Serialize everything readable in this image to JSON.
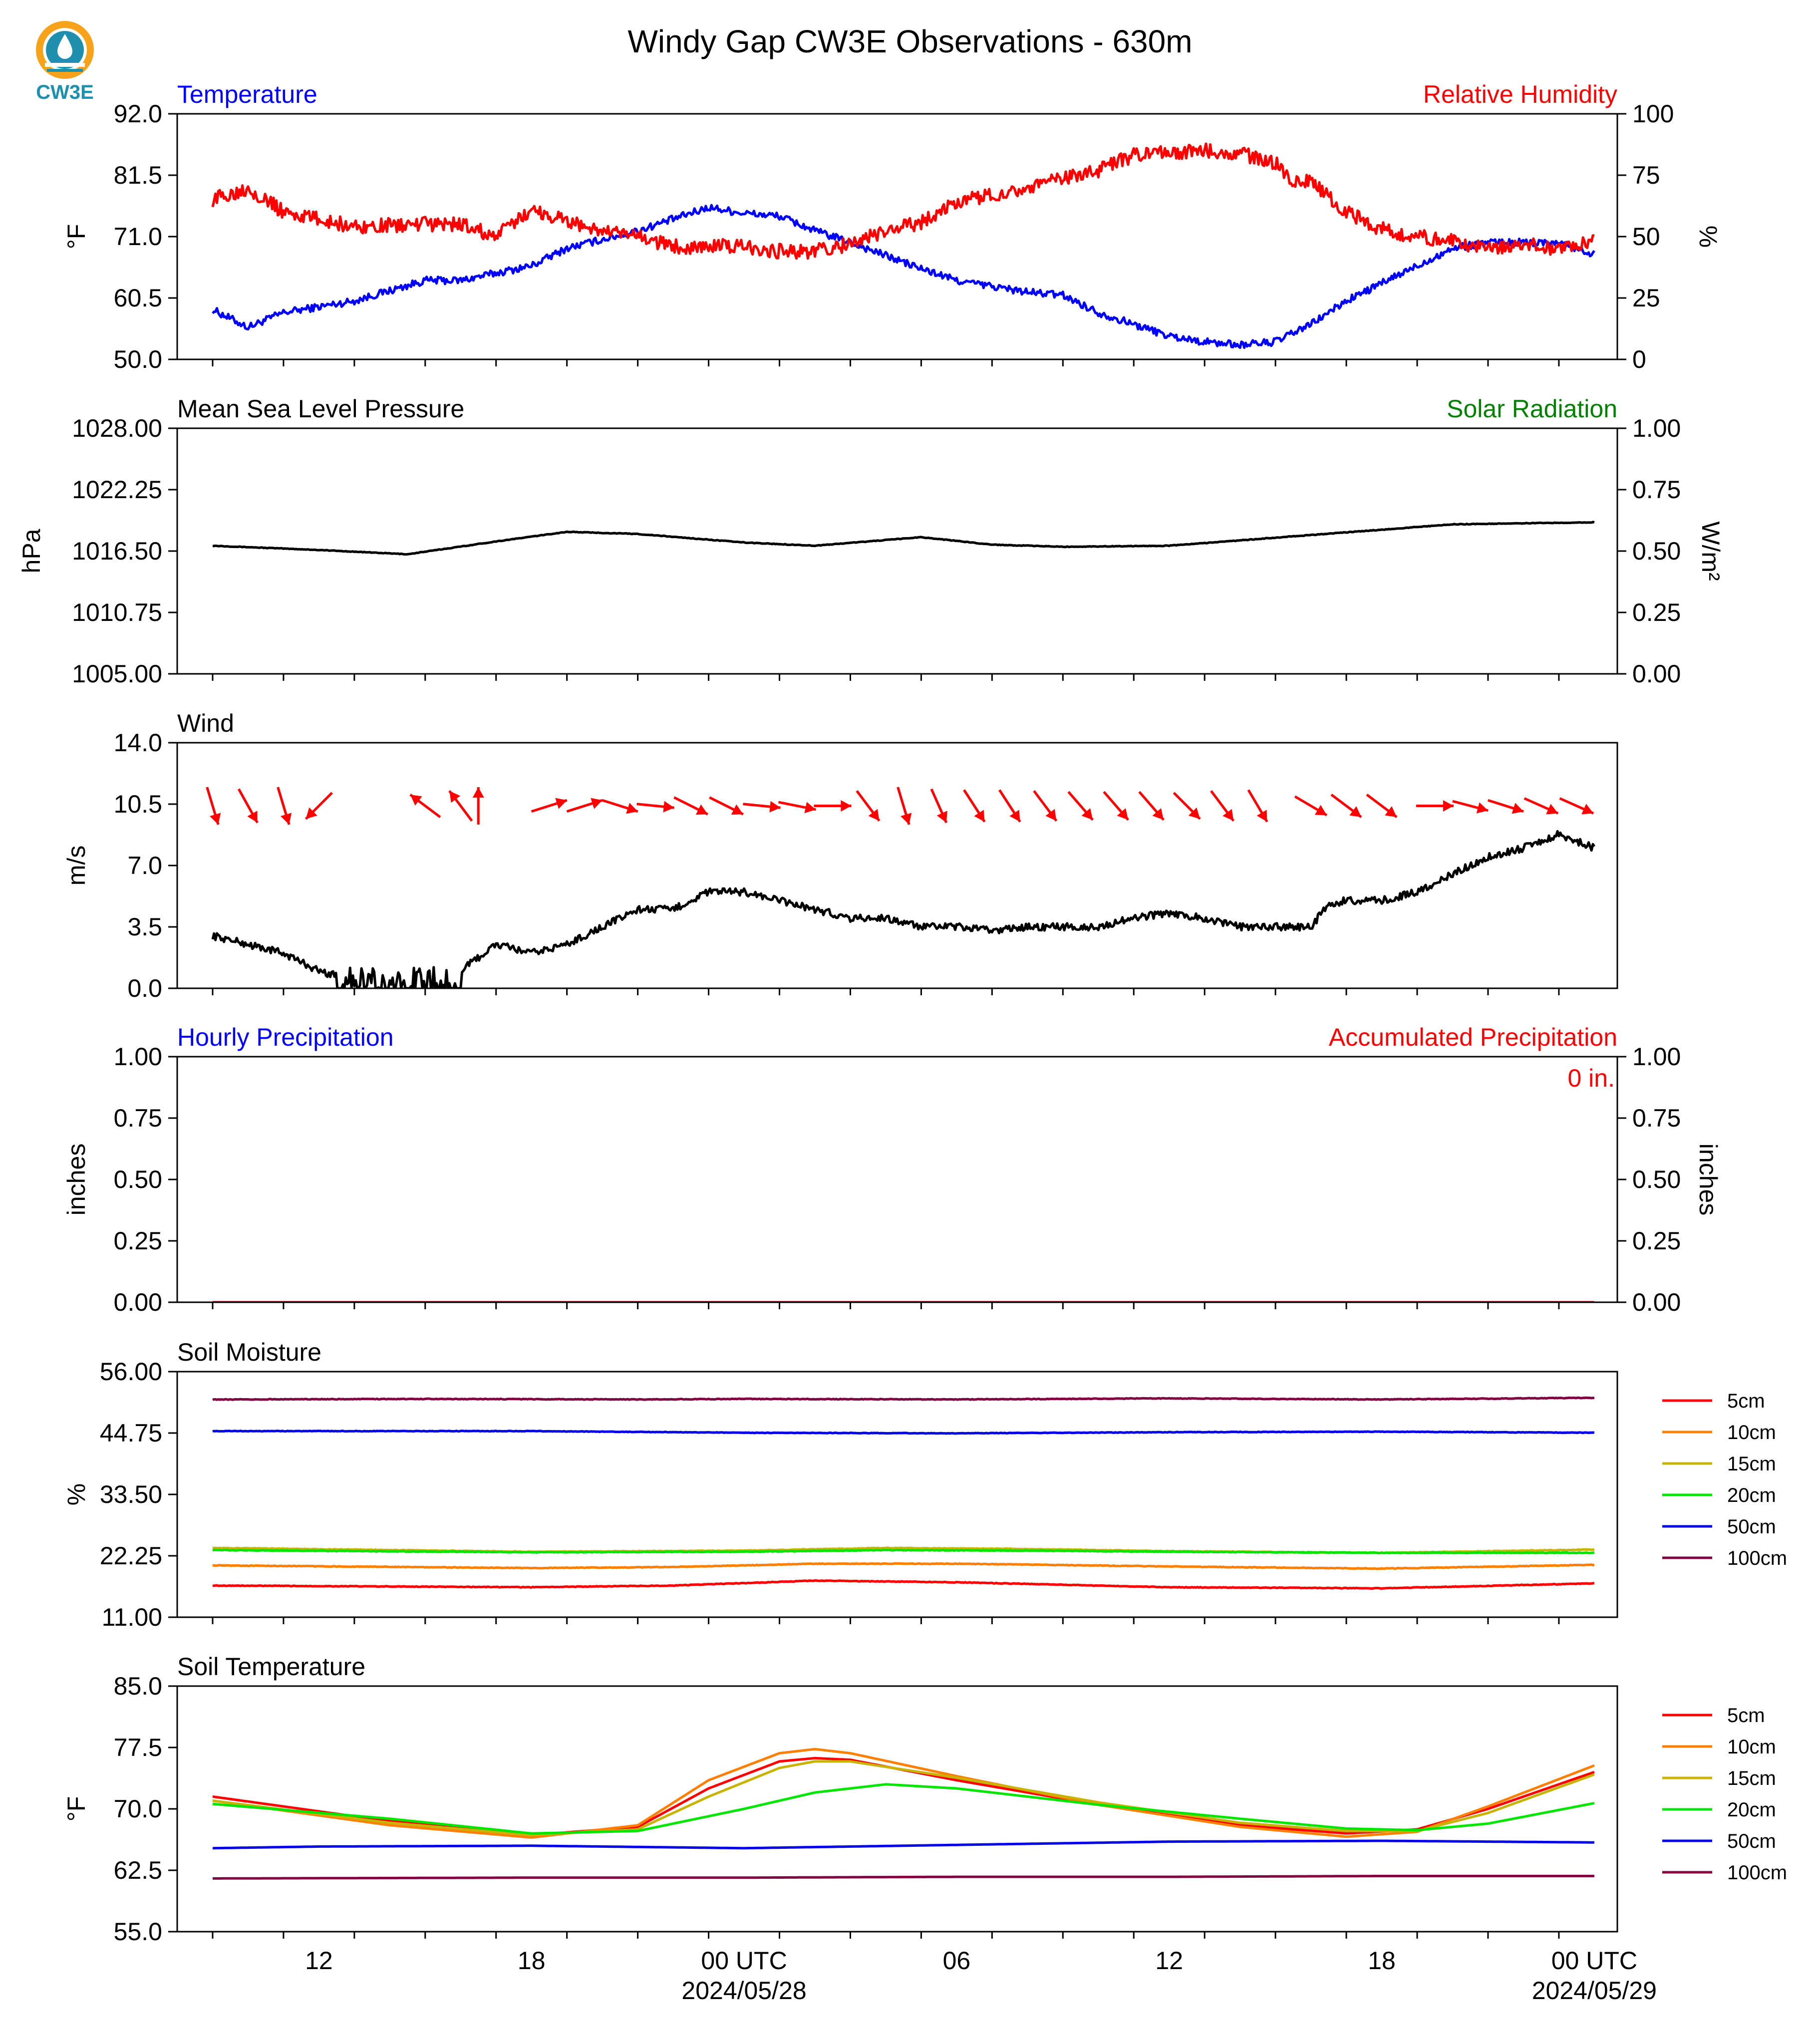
{
  "title": "Windy Gap CW3E Observations - 630m",
  "logo": {
    "text": "CW3E",
    "colors": {
      "orange": "#f7a21b",
      "teal": "#1f8fae"
    }
  },
  "x_axis": {
    "start_hour": -15,
    "end_hour": 24,
    "labels": [
      {
        "hour": -12,
        "text": "12"
      },
      {
        "hour": -6,
        "text": "18"
      },
      {
        "hour": 0,
        "text": "00 UTC",
        "sub": "2024/05/28"
      },
      {
        "hour": 6,
        "text": "06"
      },
      {
        "hour": 12,
        "text": "12"
      },
      {
        "hour": 18,
        "text": "18"
      },
      {
        "hour": 24,
        "text": "00 UTC",
        "sub": "2024/05/29"
      }
    ]
  },
  "chart_data": [
    {
      "id": "temperature",
      "type": "line",
      "left_title": "Temperature",
      "left_title_color": "#0000ff",
      "right_title": "Relative Humidity",
      "right_title_color": "#ff0000",
      "ylabel": "°F",
      "ylim": [
        50,
        92
      ],
      "yticks": [
        "50.0",
        "60.5",
        "71.0",
        "81.5",
        "92.0"
      ],
      "y2label": "%",
      "y2lim": [
        0,
        100
      ],
      "y2ticks": [
        "0",
        "25",
        "50",
        "75",
        "100"
      ],
      "series": [
        {
          "color": "#0000ff",
          "axis": "left",
          "noise": 0.6,
          "x": [
            -15,
            -14,
            -13,
            -11,
            -9,
            -8,
            -6,
            -5,
            -3,
            -1,
            0,
            1,
            2,
            3,
            5,
            6,
            8,
            9,
            10,
            11,
            12,
            13,
            14,
            15,
            16,
            17,
            18,
            19,
            20,
            21,
            22,
            23,
            24
          ],
          "y": [
            58.5,
            55.5,
            58,
            60,
            63.5,
            63.5,
            66,
            69,
            72,
            76,
            75,
            74.5,
            72,
            70,
            65.5,
            63.5,
            61.5,
            61,
            58,
            56,
            54,
            53,
            52.5,
            53,
            56,
            60,
            63,
            66,
            69,
            70,
            70,
            70,
            68
          ]
        },
        {
          "color": "#ff0000",
          "axis": "right",
          "noise": 1.2,
          "x": [
            -15,
            -14,
            -13,
            -11,
            -9,
            -8,
            -7,
            -6,
            -4,
            -3,
            -2,
            -1,
            0,
            1,
            2,
            3,
            4,
            5,
            6,
            8,
            10,
            11,
            12,
            13,
            14,
            15,
            15.5,
            16,
            17,
            18,
            19,
            20,
            21,
            22,
            23,
            24
          ],
          "y": [
            65,
            70,
            60,
            54,
            55,
            55,
            50,
            61,
            52,
            50,
            46,
            46,
            46,
            44,
            44,
            47,
            52,
            56,
            64,
            70,
            77,
            83,
            84,
            85,
            84,
            80,
            72,
            73,
            60,
            53,
            50,
            48,
            45,
            47,
            45,
            48
          ]
        }
      ]
    },
    {
      "id": "pressure",
      "type": "line",
      "left_title": "Mean Sea Level Pressure",
      "left_title_color": "#000000",
      "right_title": "Solar Radiation",
      "right_title_color": "#008000",
      "ylabel": "hPa",
      "ylim": [
        1005,
        1028
      ],
      "yticks": [
        "1005.00",
        "1010.75",
        "1016.50",
        "1022.25",
        "1028.00"
      ],
      "y2label": "W/m²",
      "y2lim": [
        0,
        1
      ],
      "y2ticks": [
        "0.00",
        "0.25",
        "0.50",
        "0.75",
        "1.00"
      ],
      "series": [
        {
          "color": "#000000",
          "axis": "left",
          "noise": 0.05,
          "x": [
            -15,
            -12,
            -9.5,
            -7,
            -5,
            -3,
            0,
            2,
            5,
            7,
            9,
            12,
            16,
            20,
            24
          ],
          "y": [
            1017.0,
            1016.6,
            1016.2,
            1017.4,
            1018.3,
            1018.1,
            1017.3,
            1017.0,
            1017.8,
            1017.1,
            1016.9,
            1017.0,
            1018.0,
            1019.0,
            1019.2
          ]
        }
      ]
    },
    {
      "id": "wind",
      "type": "line",
      "left_title": "Wind",
      "left_title_color": "#000000",
      "ylabel": "m/s",
      "ylim": [
        0,
        14
      ],
      "yticks": [
        "0.0",
        "3.5",
        "7.0",
        "10.5",
        "14.0"
      ],
      "series": [
        {
          "color": "#000000",
          "axis": "left",
          "noise": 0.6,
          "x": [
            -15,
            -13,
            -12,
            -11,
            -10,
            -9,
            -8.1,
            -8,
            -7,
            -6,
            -5,
            -4,
            -3,
            -2,
            -1,
            0,
            1,
            2,
            3,
            4,
            5,
            6,
            7,
            8,
            9,
            10,
            11,
            12,
            13,
            14,
            15,
            16,
            16.5,
            17,
            18,
            19,
            20,
            21,
            22,
            23,
            24
          ],
          "y": [
            3.0,
            2.0,
            1.0,
            0.4,
            0.5,
            0.5,
            0.5,
            1.0,
            2.5,
            2.0,
            2.5,
            3.5,
            4.5,
            4.5,
            5.5,
            5.5,
            5.0,
            4.5,
            4.0,
            4.0,
            3.5,
            3.5,
            3.3,
            3.5,
            3.5,
            3.5,
            4.0,
            4.3,
            4.0,
            3.5,
            3.5,
            3.5,
            4.8,
            5.0,
            5.0,
            5.5,
            6.5,
            7.5,
            8.0,
            8.8,
            8.0
          ],
          "gaps": [
            [
              -8.1,
              -8.0
            ]
          ]
        }
      ],
      "arrows": {
        "color": "#ff0000",
        "y_level": 10.4,
        "items": [
          {
            "hour": -15.0,
            "u": 0.3,
            "v": -1
          },
          {
            "hour": -14.0,
            "u": 0.5,
            "v": -0.9
          },
          {
            "hour": -13.0,
            "u": 0.3,
            "v": -1
          },
          {
            "hour": -12.0,
            "u": -0.7,
            "v": -0.7
          },
          {
            "hour": -9.0,
            "u": -0.8,
            "v": 0.6
          },
          {
            "hour": -8.0,
            "u": -0.6,
            "v": 0.8
          },
          {
            "hour": -7.5,
            "u": 0.0,
            "v": 1
          },
          {
            "hour": -5.5,
            "u": 0.95,
            "v": 0.3
          },
          {
            "hour": -4.5,
            "u": 0.95,
            "v": 0.3
          },
          {
            "hour": -3.5,
            "u": 0.95,
            "v": -0.3
          },
          {
            "hour": -2.5,
            "u": 1,
            "v": -0.1
          },
          {
            "hour": -1.5,
            "u": 0.9,
            "v": -0.45
          },
          {
            "hour": -0.5,
            "u": 0.9,
            "v": -0.45
          },
          {
            "hour": 0.5,
            "u": 1,
            "v": -0.1
          },
          {
            "hour": 1.5,
            "u": 1,
            "v": -0.2
          },
          {
            "hour": 2.5,
            "u": 1,
            "v": 0.0
          },
          {
            "hour": 3.5,
            "u": 0.6,
            "v": -0.8
          },
          {
            "hour": 4.5,
            "u": 0.3,
            "v": -1
          },
          {
            "hour": 5.5,
            "u": 0.4,
            "v": -0.9
          },
          {
            "hour": 6.5,
            "u": 0.55,
            "v": -0.85
          },
          {
            "hour": 7.5,
            "u": 0.55,
            "v": -0.85
          },
          {
            "hour": 8.5,
            "u": 0.6,
            "v": -0.8
          },
          {
            "hour": 9.5,
            "u": 0.65,
            "v": -0.75
          },
          {
            "hour": 10.5,
            "u": 0.65,
            "v": -0.75
          },
          {
            "hour": 11.5,
            "u": 0.65,
            "v": -0.75
          },
          {
            "hour": 12.5,
            "u": 0.7,
            "v": -0.7
          },
          {
            "hour": 13.5,
            "u": 0.6,
            "v": -0.8
          },
          {
            "hour": 14.5,
            "u": 0.5,
            "v": -0.85
          },
          {
            "hour": 16.0,
            "u": 0.85,
            "v": -0.5
          },
          {
            "hour": 17.0,
            "u": 0.8,
            "v": -0.6
          },
          {
            "hour": 18.0,
            "u": 0.8,
            "v": -0.6
          },
          {
            "hour": 19.5,
            "u": 1,
            "v": 0.0
          },
          {
            "hour": 20.5,
            "u": 0.95,
            "v": -0.25
          },
          {
            "hour": 21.5,
            "u": 0.95,
            "v": -0.3
          },
          {
            "hour": 22.5,
            "u": 0.9,
            "v": -0.4
          },
          {
            "hour": 23.5,
            "u": 0.9,
            "v": -0.4
          }
        ]
      }
    },
    {
      "id": "precipitation",
      "type": "line",
      "left_title": "Hourly Precipitation",
      "left_title_color": "#0000ff",
      "right_title": "Accumulated Precipitation",
      "right_title_color": "#ff0000",
      "annotation": "0 in.",
      "annotation_color": "#ff0000",
      "ylabel": "inches",
      "ylim": [
        0,
        1
      ],
      "yticks": [
        "0.00",
        "0.25",
        "0.50",
        "0.75",
        "1.00"
      ],
      "y2label": "inches",
      "y2lim": [
        0,
        1
      ],
      "y2ticks": [
        "0.00",
        "0.25",
        "0.50",
        "0.75",
        "1.00"
      ],
      "series": [
        {
          "color": "#ff0000",
          "axis": "left",
          "noise": 0,
          "x": [
            -15,
            24
          ],
          "y": [
            0,
            0
          ]
        }
      ]
    },
    {
      "id": "soil_moisture",
      "type": "line",
      "left_title": "Soil Moisture",
      "left_title_color": "#000000",
      "ylabel": "%",
      "ylim": [
        11,
        56
      ],
      "yticks": [
        "11.00",
        "22.25",
        "33.50",
        "44.75",
        "56.00"
      ],
      "legend": "right",
      "series": [
        {
          "name": "5cm",
          "color": "#ff0000",
          "noise": 0.05,
          "x": [
            -15,
            -6,
            -2,
            2,
            6,
            12,
            18,
            24
          ],
          "y": [
            16.8,
            16.5,
            16.8,
            17.7,
            17.4,
            16.5,
            16.3,
            17.2
          ]
        },
        {
          "name": "10cm",
          "color": "#ff8000",
          "noise": 0.05,
          "x": [
            -15,
            -6,
            -2,
            2,
            6,
            12,
            18,
            24
          ],
          "y": [
            20.5,
            20.0,
            20.2,
            20.8,
            20.8,
            20.3,
            19.9,
            20.6
          ]
        },
        {
          "name": "15cm",
          "color": "#c8b400",
          "noise": 0.05,
          "x": [
            -15,
            -6,
            0,
            4,
            8,
            12,
            18,
            24
          ],
          "y": [
            23.7,
            23.0,
            23.2,
            23.7,
            23.5,
            23.1,
            22.8,
            23.4
          ]
        },
        {
          "name": "20cm",
          "color": "#00e600",
          "noise": 0.05,
          "x": [
            -15,
            -6,
            0,
            4,
            8,
            12,
            18,
            24
          ],
          "y": [
            23.3,
            22.9,
            23.0,
            23.3,
            23.2,
            23.0,
            22.8,
            22.8
          ]
        },
        {
          "name": "50cm",
          "color": "#0000e6",
          "noise": 0.04,
          "x": [
            -15,
            -6,
            0,
            6,
            12,
            18,
            24
          ],
          "y": [
            45.1,
            45.1,
            44.8,
            44.7,
            44.9,
            45.0,
            44.8
          ]
        },
        {
          "name": "100cm",
          "color": "#800040",
          "noise": 0.05,
          "x": [
            -15,
            -9,
            -3,
            0,
            6,
            12,
            18,
            24
          ],
          "y": [
            50.9,
            51.0,
            50.9,
            51.0,
            50.9,
            51.1,
            50.9,
            51.2
          ]
        }
      ]
    },
    {
      "id": "soil_temperature",
      "type": "line",
      "left_title": "Soil Temperature",
      "left_title_color": "#000000",
      "ylabel": "°F",
      "ylim": [
        55,
        85
      ],
      "yticks": [
        "55.0",
        "62.5",
        "70.0",
        "77.5",
        "85.0"
      ],
      "legend": "right",
      "series": [
        {
          "name": "5cm",
          "color": "#ff0000",
          "noise": 0,
          "x": [
            -15,
            -10,
            -6,
            -3,
            -1,
            1,
            2,
            3,
            6,
            10,
            14,
            17,
            19,
            21,
            24
          ],
          "y": [
            71.5,
            68.5,
            66.8,
            67.8,
            72.5,
            75.8,
            76.2,
            76.0,
            73.5,
            70.5,
            68.0,
            67.0,
            67.5,
            70.0,
            74.5
          ]
        },
        {
          "name": "10cm",
          "color": "#ff8000",
          "noise": 0,
          "x": [
            -15,
            -10,
            -6,
            -3,
            -1,
            1,
            2,
            3,
            6,
            10,
            14,
            17,
            19,
            21,
            24
          ],
          "y": [
            71.0,
            68.0,
            66.5,
            68.0,
            73.5,
            76.8,
            77.3,
            76.8,
            74.0,
            70.5,
            67.8,
            66.6,
            67.2,
            70.3,
            75.3
          ]
        },
        {
          "name": "15cm",
          "color": "#c8b400",
          "noise": 0,
          "x": [
            -15,
            -10,
            -6,
            -3,
            -1,
            1,
            2,
            3,
            6,
            10,
            14,
            17,
            19,
            21,
            24
          ],
          "y": [
            71.0,
            68.3,
            66.8,
            67.5,
            71.5,
            75.0,
            75.8,
            75.8,
            73.8,
            70.8,
            68.3,
            67.3,
            67.3,
            69.5,
            74.2
          ]
        },
        {
          "name": "20cm",
          "color": "#00e600",
          "noise": 0,
          "x": [
            -15,
            -10,
            -6,
            -3,
            0,
            2,
            4,
            6,
            10,
            14,
            17,
            19,
            21,
            24
          ],
          "y": [
            70.6,
            68.8,
            67.0,
            67.3,
            70.0,
            72.0,
            73.0,
            72.5,
            70.5,
            68.8,
            67.6,
            67.4,
            68.2,
            70.7
          ]
        },
        {
          "name": "50cm",
          "color": "#0000e6",
          "noise": 0,
          "x": [
            -15,
            -12,
            -6,
            0,
            6,
            12,
            18,
            24
          ],
          "y": [
            65.2,
            65.4,
            65.5,
            65.2,
            65.6,
            66.0,
            66.1,
            65.9
          ]
        },
        {
          "name": "100cm",
          "color": "#800040",
          "noise": 0,
          "x": [
            -15,
            -6,
            0,
            6,
            12,
            18,
            24
          ],
          "y": [
            61.5,
            61.6,
            61.6,
            61.7,
            61.7,
            61.8,
            61.8
          ]
        }
      ]
    }
  ]
}
